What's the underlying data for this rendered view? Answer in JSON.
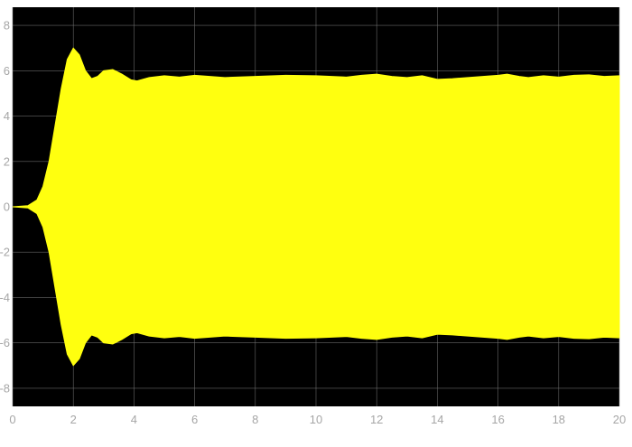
{
  "chart_data": {
    "type": "area",
    "title": "",
    "xlabel": "",
    "ylabel": "",
    "xlim": [
      0,
      20
    ],
    "ylim": [
      -8.8,
      8.8
    ],
    "grid": true,
    "legend": "none",
    "background_color": "#000000",
    "series_color": "#ffff0f",
    "tick_color": "#a6a6a6",
    "grid_color": "#7a7a7a",
    "x_ticks": [
      "0",
      "2",
      "4",
      "6",
      "8",
      "10",
      "12",
      "14",
      "16",
      "18",
      "20"
    ],
    "x_tick_values": [
      0,
      2,
      4,
      6,
      8,
      10,
      12,
      14,
      16,
      18,
      20
    ],
    "y_ticks": [
      "8",
      "6",
      "4",
      "2",
      "0",
      "-2",
      "-4",
      "-6",
      "-8"
    ],
    "y_tick_values": [
      8,
      6,
      4,
      2,
      0,
      -2,
      -4,
      -6,
      -8
    ],
    "series": [
      {
        "x": [
          0,
          0.5,
          0.8,
          1.0,
          1.2,
          1.4,
          1.6,
          1.8,
          2.0,
          2.2,
          2.4,
          2.6,
          2.8,
          3.0,
          3.3,
          3.6,
          3.9,
          4.1,
          4.5,
          5.0,
          5.5,
          6.0,
          6.5,
          7.0,
          8.0,
          9.0,
          10.0,
          11.0,
          11.5,
          12.0,
          12.5,
          13.0,
          13.5,
          14.0,
          14.5,
          15.0,
          15.5,
          16.0,
          16.3,
          16.7,
          17.0,
          17.5,
          18.0,
          18.5,
          19.0,
          19.5,
          20.0
        ],
        "upper": [
          0,
          0.05,
          0.3,
          0.9,
          2.0,
          3.6,
          5.2,
          6.5,
          7.0,
          6.7,
          6.0,
          5.65,
          5.75,
          6.0,
          6.05,
          5.85,
          5.6,
          5.55,
          5.7,
          5.78,
          5.72,
          5.8,
          5.75,
          5.7,
          5.75,
          5.8,
          5.78,
          5.72,
          5.8,
          5.85,
          5.75,
          5.7,
          5.78,
          5.62,
          5.65,
          5.7,
          5.75,
          5.8,
          5.85,
          5.75,
          5.7,
          5.78,
          5.72,
          5.8,
          5.82,
          5.75,
          5.78
        ],
        "lower": [
          0,
          -0.05,
          -0.3,
          -0.9,
          -2.0,
          -3.6,
          -5.2,
          -6.5,
          -7.0,
          -6.7,
          -6.0,
          -5.65,
          -5.75,
          -6.0,
          -6.05,
          -5.85,
          -5.6,
          -5.55,
          -5.7,
          -5.78,
          -5.72,
          -5.8,
          -5.75,
          -5.7,
          -5.75,
          -5.8,
          -5.78,
          -5.72,
          -5.8,
          -5.85,
          -5.75,
          -5.7,
          -5.78,
          -5.62,
          -5.65,
          -5.7,
          -5.75,
          -5.8,
          -5.85,
          -5.75,
          -5.7,
          -5.78,
          -5.72,
          -5.8,
          -5.82,
          -5.75,
          -5.78
        ]
      }
    ]
  }
}
